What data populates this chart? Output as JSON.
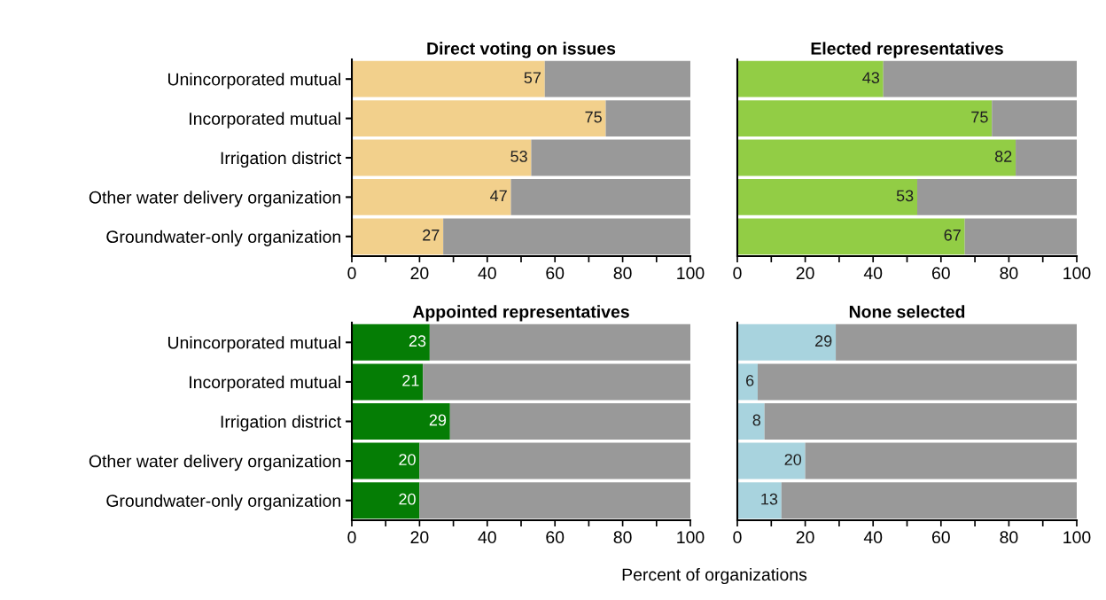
{
  "chart_data": [
    {
      "type": "bar",
      "orientation": "horizontal",
      "stacked": true,
      "title": "Direct voting on issues",
      "categories": [
        "Unincorporated mutual",
        "Incorporated mutual",
        "Irrigation district",
        "Other water delivery organization",
        "Groundwater-only organization"
      ],
      "series": [
        {
          "color": "#f2d08c",
          "values": [
            57,
            75,
            53,
            47,
            27
          ],
          "value_labels": [
            "57",
            "75",
            "53",
            "47",
            "27"
          ]
        },
        {
          "color": "#999999",
          "values": [
            43,
            25,
            47,
            53,
            73
          ]
        }
      ],
      "xlim": [
        0,
        100
      ],
      "xticks": [
        0,
        {
          "value": 10,
          "label": null
        },
        20,
        {
          "value": 30,
          "label": null
        },
        40,
        {
          "value": 50,
          "label": null
        },
        60,
        {
          "value": 70,
          "label": null
        },
        80,
        {
          "value": 90,
          "label": null
        },
        100
      ],
      "grid": false
    },
    {
      "type": "bar",
      "orientation": "horizontal",
      "stacked": true,
      "title": "Elected representatives",
      "categories": [
        null,
        null,
        null,
        null,
        null
      ],
      "series": [
        {
          "color": "#92cd45",
          "values": [
            43,
            75,
            82,
            53,
            67
          ],
          "value_labels": [
            "43",
            "75",
            "82",
            "53",
            "67"
          ]
        },
        {
          "color": "#999999",
          "values": [
            57,
            25,
            18,
            47,
            33
          ]
        }
      ],
      "xlim": [
        0,
        100
      ],
      "xticks": [
        0,
        {
          "value": 10,
          "label": null
        },
        20,
        {
          "value": 30,
          "label": null
        },
        40,
        {
          "value": 50,
          "label": null
        },
        60,
        {
          "value": 70,
          "label": null
        },
        80,
        {
          "value": 90,
          "label": null
        },
        100
      ],
      "tick_labels": "x",
      "grid": false
    },
    {
      "type": "bar",
      "orientation": "horizontal",
      "stacked": true,
      "title": "Appointed representatives",
      "xlabel": "Percent of organizations",
      "categories": [
        "Unincorporated mutual",
        "Incorporated mutual",
        "Irrigation district",
        "Other water delivery organization",
        "Groundwater-only organization"
      ],
      "series": [
        {
          "color": "#057d05",
          "values": [
            23,
            21,
            29,
            20,
            20
          ],
          "value_labels": [
            "23",
            "21",
            "29",
            "20",
            "20"
          ]
        },
        {
          "color": "#999999",
          "values": [
            77,
            79,
            71,
            80,
            80
          ]
        }
      ],
      "xlim": [
        0,
        100
      ],
      "xticks": [
        0,
        {
          "value": 10,
          "label": null
        },
        20,
        {
          "value": 30,
          "label": null
        },
        40,
        {
          "value": 50,
          "label": null
        },
        60,
        {
          "value": 70,
          "label": null
        },
        80,
        {
          "value": 90,
          "label": null
        },
        100
      ],
      "grid": false
    },
    {
      "type": "bar",
      "orientation": "horizontal",
      "stacked": true,
      "title": "None selected",
      "categories": [
        null,
        null,
        null,
        null,
        null
      ],
      "series": [
        {
          "color": "#a8d3de",
          "values": [
            29,
            6,
            8,
            20,
            13
          ],
          "value_labels": [
            "29",
            "6",
            "8",
            "20",
            "13"
          ]
        },
        {
          "color": "#999999",
          "values": [
            71,
            94,
            92,
            80,
            87
          ]
        }
      ],
      "xlim": [
        0,
        100
      ],
      "xticks": [
        0,
        {
          "value": 10,
          "label": null
        },
        20,
        {
          "value": 30,
          "label": null
        },
        40,
        {
          "value": 50,
          "label": null
        },
        60,
        {
          "value": 70,
          "label": null
        },
        80,
        {
          "value": 90,
          "label": null
        },
        100
      ],
      "tick_labels": "x",
      "grid": false
    }
  ]
}
